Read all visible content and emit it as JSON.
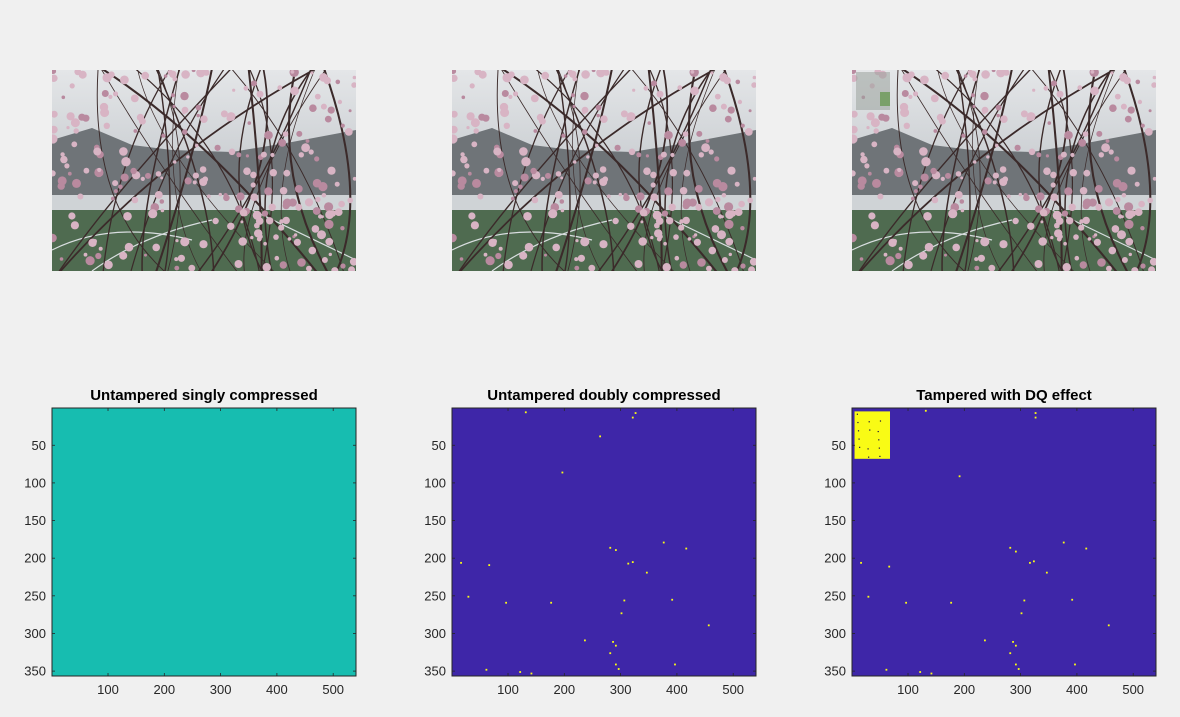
{
  "figure": {
    "top_images": [
      {
        "subject": "cherry-blossom-photo",
        "tamper_patch": false
      },
      {
        "subject": "cherry-blossom-photo",
        "tamper_patch": false
      },
      {
        "subject": "cherry-blossom-photo",
        "tamper_patch": true
      }
    ]
  },
  "colors": {
    "figure_bg": "#f0f0f0",
    "teal": "#17bdb0",
    "navy": "#3e26a8",
    "yellow": "#f9fb15",
    "sky": "#c8ccd0",
    "field": "#4f6b50",
    "blossom": "#d8b4c4",
    "branch": "#3b2a2a"
  },
  "chart_data": [
    {
      "type": "heatmap",
      "title": "Untampered singly compressed",
      "xlabel": "",
      "ylabel": "",
      "xlim": [
        0.5,
        540.5
      ],
      "ylim": [
        0.5,
        356.5
      ],
      "y_reversed": true,
      "xticks": [
        100,
        200,
        300,
        400,
        500
      ],
      "yticks": [
        50,
        100,
        150,
        200,
        250,
        300,
        350
      ],
      "fill": "teal",
      "regions": [],
      "speckles": []
    },
    {
      "type": "heatmap",
      "title": "Untampered doubly compressed",
      "xlabel": "",
      "ylabel": "",
      "xlim": [
        0.5,
        540.5
      ],
      "ylim": [
        0.5,
        356.5
      ],
      "y_reversed": true,
      "xticks": [
        100,
        200,
        300,
        400,
        500
      ],
      "yticks": [
        50,
        100,
        150,
        200,
        250,
        300,
        350
      ],
      "fill": "navy",
      "regions": [],
      "speckles": [
        [
          130,
          5
        ],
        [
          325,
          6
        ],
        [
          320,
          12
        ],
        [
          262,
          37
        ],
        [
          195,
          85
        ],
        [
          15,
          205
        ],
        [
          65,
          208
        ],
        [
          280,
          185
        ],
        [
          290,
          188
        ],
        [
          312,
          206
        ],
        [
          320,
          204
        ],
        [
          375,
          178
        ],
        [
          415,
          186
        ],
        [
          28,
          250
        ],
        [
          95,
          258
        ],
        [
          175,
          258
        ],
        [
          305,
          255
        ],
        [
          390,
          254
        ],
        [
          345,
          218
        ],
        [
          455,
          288
        ],
        [
          300,
          272
        ],
        [
          235,
          308
        ],
        [
          285,
          310
        ],
        [
          290,
          315
        ],
        [
          280,
          325
        ],
        [
          290,
          340
        ],
        [
          295,
          346
        ],
        [
          395,
          340
        ],
        [
          120,
          350
        ],
        [
          140,
          352
        ],
        [
          60,
          347
        ],
        [
          380,
          362
        ]
      ]
    },
    {
      "type": "heatmap",
      "title": "Tampered with DQ effect",
      "xlabel": "",
      "ylabel": "",
      "xlim": [
        0.5,
        540.5
      ],
      "ylim": [
        0.5,
        356.5
      ],
      "y_reversed": true,
      "xticks": [
        100,
        200,
        300,
        400,
        500
      ],
      "yticks": [
        50,
        100,
        150,
        200,
        250,
        300,
        350
      ],
      "fill": "navy",
      "regions": [
        {
          "x0": 5,
          "x1": 68,
          "y0": 5,
          "y1": 68,
          "color": "yellow"
        }
      ],
      "speckles": [
        [
          130,
          3
        ],
        [
          325,
          6
        ],
        [
          325,
          12
        ],
        [
          190,
          90
        ],
        [
          15,
          205
        ],
        [
          65,
          210
        ],
        [
          280,
          185
        ],
        [
          290,
          190
        ],
        [
          315,
          205
        ],
        [
          322,
          203
        ],
        [
          375,
          178
        ],
        [
          415,
          186
        ],
        [
          28,
          250
        ],
        [
          95,
          258
        ],
        [
          175,
          258
        ],
        [
          305,
          255
        ],
        [
          390,
          254
        ],
        [
          345,
          218
        ],
        [
          455,
          288
        ],
        [
          300,
          272
        ],
        [
          235,
          308
        ],
        [
          285,
          310
        ],
        [
          290,
          315
        ],
        [
          280,
          325
        ],
        [
          290,
          340
        ],
        [
          295,
          346
        ],
        [
          395,
          340
        ],
        [
          120,
          350
        ],
        [
          140,
          352
        ],
        [
          60,
          347
        ]
      ]
    }
  ]
}
